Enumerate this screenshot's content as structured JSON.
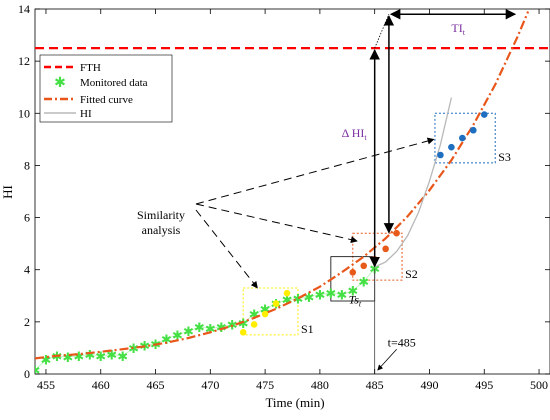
{
  "chart_data": {
    "type": "line",
    "xlabel": "Time (min)",
    "ylabel": "HI",
    "xlim": [
      454,
      501
    ],
    "ylim": [
      0,
      14
    ],
    "xticks": [
      455,
      460,
      465,
      470,
      475,
      480,
      485,
      490,
      495,
      500
    ],
    "yticks": [
      0,
      2,
      4,
      6,
      8,
      10,
      12,
      14
    ],
    "grid": false,
    "legend": {
      "placement": "top-left",
      "entries": [
        "FTH",
        "Monitored data",
        "Fitted curve",
        "HI"
      ]
    },
    "series": [
      {
        "name": "FTH",
        "style": "dashed",
        "color": "#ff0000",
        "x": [
          454,
          501
        ],
        "y": [
          12.5,
          12.5
        ]
      },
      {
        "name": "Monitored data",
        "style": "star-markers",
        "color": "#44e044",
        "x": [
          454,
          455,
          456,
          457,
          458,
          459,
          460,
          461,
          462,
          463,
          464,
          465,
          466,
          467,
          468,
          469,
          470,
          471,
          472,
          473,
          474,
          475,
          476,
          477,
          478,
          479,
          480,
          481,
          482,
          483,
          484,
          485
        ],
        "y": [
          0.15,
          0.55,
          0.7,
          0.65,
          0.7,
          0.75,
          0.7,
          0.75,
          0.7,
          1.0,
          1.1,
          1.15,
          1.35,
          1.5,
          1.65,
          1.8,
          1.75,
          1.8,
          1.9,
          1.95,
          2.3,
          2.5,
          2.7,
          2.85,
          2.9,
          2.95,
          3.05,
          3.1,
          3.05,
          3.2,
          3.55,
          4.05
        ]
      },
      {
        "name": "Fitted curve",
        "style": "dash-dot",
        "color": "#e8561a",
        "x": [
          454,
          456,
          458,
          460,
          462,
          464,
          466,
          468,
          470,
          472,
          474,
          476,
          478,
          480,
          482,
          484,
          486,
          488,
          490,
          492,
          494,
          496,
          498,
          499
        ],
        "y": [
          0.6,
          0.7,
          0.76,
          0.85,
          0.95,
          1.06,
          1.2,
          1.38,
          1.6,
          1.85,
          2.15,
          2.5,
          2.9,
          3.35,
          3.9,
          4.5,
          5.2,
          6.05,
          7.05,
          8.2,
          9.55,
          11.1,
          12.9,
          13.9
        ]
      },
      {
        "name": "HI",
        "style": "solid",
        "color": "#b8b8b8",
        "x": [
          485,
          486,
          487,
          488,
          489,
          490,
          491,
          492
        ],
        "y": [
          4.1,
          4.3,
          4.7,
          5.3,
          6.2,
          7.4,
          8.8,
          10.6
        ]
      }
    ],
    "similarity_segments": [
      {
        "label": "S1",
        "color": "#ffee00",
        "box_x": [
          473,
          478
        ],
        "box_y": [
          1.5,
          3.3
        ],
        "x": [
          473,
          474,
          475,
          476,
          477
        ],
        "y": [
          1.6,
          1.9,
          2.3,
          2.7,
          3.1
        ]
      },
      {
        "label": "S2",
        "color": "#e85a1a",
        "box_x": [
          483,
          487.5
        ],
        "box_y": [
          3.6,
          5.4
        ],
        "x": [
          483,
          484,
          485,
          486,
          487
        ],
        "y": [
          3.9,
          4.15,
          4.4,
          4.8,
          5.4
        ]
      },
      {
        "label": "S3",
        "color": "#1f6fc0",
        "box_x": [
          490.5,
          496
        ],
        "box_y": [
          8.1,
          10.0
        ],
        "x": [
          491,
          492,
          493,
          494,
          495
        ],
        "y": [
          8.4,
          8.7,
          9.05,
          9.35,
          9.95
        ]
      }
    ],
    "annotations": {
      "similarity_label_line1": "Similarity",
      "similarity_label_line2": "analysis",
      "delta_hi_main": "Δ HI",
      "delta_hi_sub": "t",
      "ti_main": "TI",
      "ti_sub": "t",
      "ts_main": "Ts",
      "ts_sub": "t",
      "t_marker": "t=485",
      "t_marker_x": 485
    },
    "reference_box": {
      "color": "#000000",
      "x": [
        481,
        485
      ],
      "y": [
        2.8,
        4.5
      ]
    }
  }
}
